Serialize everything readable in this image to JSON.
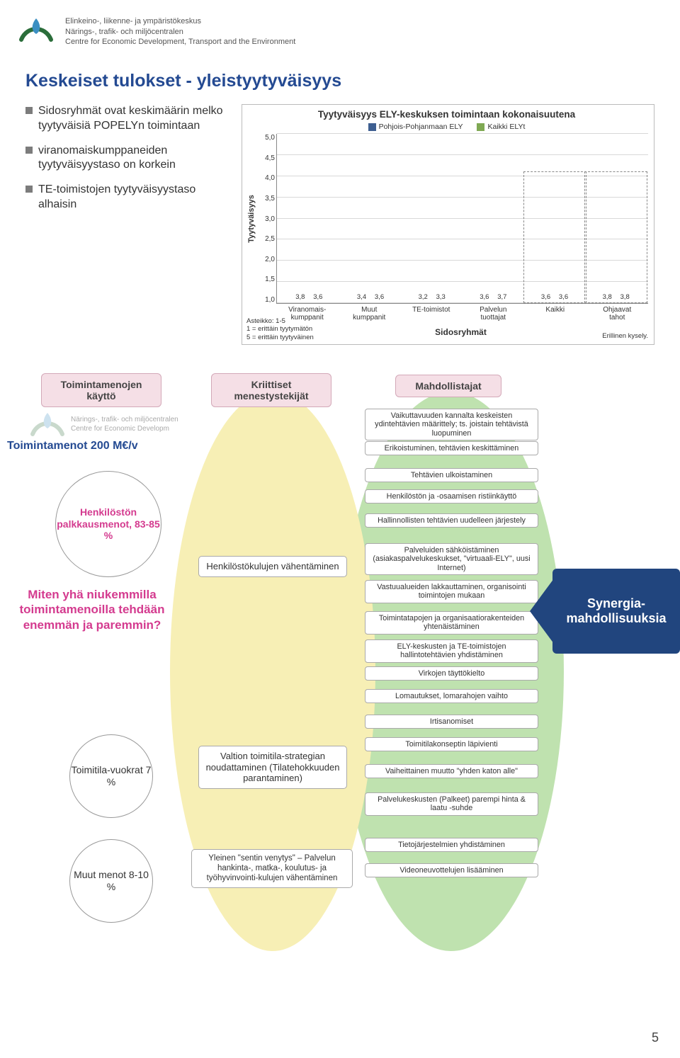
{
  "header": {
    "org_fi": "Elinkeino-, liikenne- ja ympäristökeskus",
    "org_sv": "Närings-, trafik- och miljöcentralen",
    "org_en": "Centre for Economic Development, Transport and the Environment",
    "logo_colors": {
      "swoosh": "#2b6d3a",
      "drop": "#3b8fc2"
    }
  },
  "page_title": "Keskeiset tulokset - yleistyytyväisyys",
  "page_number": "5",
  "bullets": [
    "Sidosryhmät ovat keskimäärin melko tyytyväisiä POPELYn toimintaan",
    "viranomaiskumppaneiden tyytyväisyystaso on korkein",
    "TE-toimistojen tyytyväisyystaso alhaisin"
  ],
  "chart": {
    "title": "Tyytyväisyys ELY-keskuksen toimintaan kokonaisuutena",
    "y_label": "Tyytyväisyys",
    "ymin": 1.0,
    "ymax": 5.0,
    "ystep": 0.5,
    "series": [
      {
        "name": "Pohjois-Pohjanmaan ELY",
        "color": "#3e5f91"
      },
      {
        "name": "Kaikki ELYt",
        "color": "#7fa953"
      }
    ],
    "categories": [
      {
        "label": "Viranomais-\nkumppanit",
        "v1": 3.8,
        "v2": 3.6
      },
      {
        "label": "Muut\nkumppanit",
        "v1": 3.4,
        "v2": 3.6
      },
      {
        "label": "TE-toimistot",
        "v1": 3.2,
        "v2": 3.3
      },
      {
        "label": "Palvelun\ntuottajat",
        "v1": 3.6,
        "v2": 3.7
      },
      {
        "label": "Kaikki",
        "v1": 3.6,
        "v2": 3.6,
        "boxed": true
      },
      {
        "label": "Ohjaavat\ntahot",
        "v1": 3.8,
        "v2": 3.8,
        "boxed": true
      }
    ],
    "x_axis_title": "Sidosryhmät",
    "scale_note": "Asteikko: 1-5\n1 = erittäin tyytymätön\n5 = erittäin tyytyväinen",
    "note_right": "Erillinen kysely."
  },
  "diagram": {
    "col_headers": {
      "left": "Toimintamenojen käyttö",
      "mid": "Kriittiset menestystekijät",
      "right": "Mahdollistajat"
    },
    "left_title": "Toimintamenot 200 M€/v",
    "left_question": "Miten yhä niukemmilla toimintamenoilla tehdään enemmän ja paremmin?",
    "circles": [
      {
        "label": "Henkilöstön palkkausmenot, 83-85 %",
        "color": "#d43b8f",
        "bold": true
      },
      {
        "label": "Toimitila-vuokrat 7 %",
        "color": "#444"
      },
      {
        "label": "Muut menot 8-10 %",
        "color": "#444"
      }
    ],
    "ellipse_colors": {
      "green": "#bfe2af",
      "yellow": "#f7efb5"
    },
    "ksf": [
      "Henkilöstökulujen vähentäminen",
      "Valtion toimitila-strategian noudattaminen (Tilatehokkuuden parantaminen)",
      "Yleinen \"sentin venytys\" – Palvelun hankinta-, matka-, koulutus- ja työhyvinvointi-kulujen vähentäminen"
    ],
    "mahd": [
      "Vaikuttavuuden kannalta keskeisten ydintehtävien määrittely; ts. joistain tehtävistä luopuminen",
      "Erikoistuminen, tehtävien keskittäminen",
      "Tehtävien ulkoistaminen",
      "Henkilöstön ja -osaamisen ristiinkäyttö",
      "Hallinnollisten tehtävien uudelleen järjestely",
      "Palveluiden sähköistäminen (asiakaspalvelukeskukset, \"virtuaali-ELY\", uusi Internet)",
      "Vastuualueiden lakkauttaminen, organisointi toimintojen mukaan",
      "Toimintatapojen ja organisaatiorakenteiden yhtenäistäminen",
      "ELY-keskusten ja TE-toimistojen hallintotehtävien yhdistäminen",
      "Virkojen täyttökielto",
      "Lomautukset, lomarahojen vaihto",
      "Irtisanomiset",
      "Toimitilakonseptin läpivienti",
      "Vaiheittainen muutto \"yhden katon alle\"",
      "Palvelukeskusten (Palkeet) parempi hinta & laatu -suhde",
      "Tietojärjestelmien yhdistäminen",
      "Videoneuvottelujen lisääminen"
    ],
    "synergy": "Synergia-mahdollisuuksia"
  }
}
